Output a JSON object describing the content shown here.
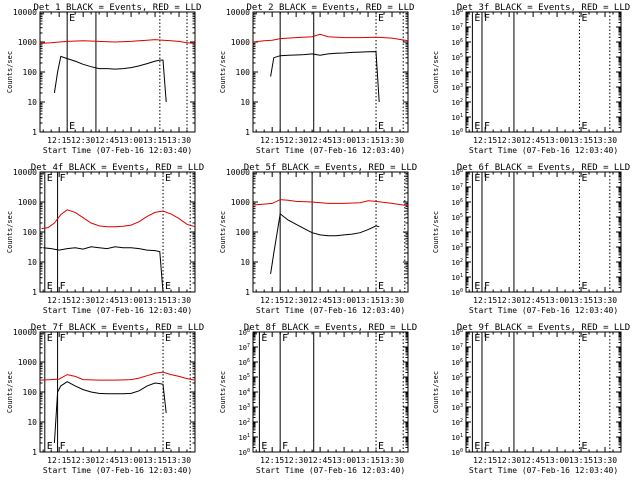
{
  "figure": {
    "xlabel": "Start Time (07-Feb-16 12:03:40)",
    "ylabel": "Counts/sec",
    "xticks": [
      "12:15",
      "12:30",
      "12:45",
      "13:00",
      "13:15",
      "13:30"
    ],
    "colors": {
      "events": "#000000",
      "lld": "#e00000",
      "frame": "#000000"
    }
  },
  "chart_data": [
    {
      "type": "line",
      "title": "Det 1 BLACK = Events, RED = LLD",
      "yscale": "log",
      "ylim": [
        1,
        10000
      ],
      "yticks": [
        "1",
        "10",
        "100",
        "1000",
        "10000"
      ],
      "xlim": [
        "12:03",
        "13:40"
      ],
      "markers": [
        {
          "x": "12:20",
          "style": "solid",
          "label": "E"
        },
        {
          "x": "12:38",
          "style": "solid",
          "label": ""
        },
        {
          "x": "13:18",
          "style": "dotted",
          "label": ""
        },
        {
          "x": "13:35",
          "style": "dotted",
          "label": ""
        }
      ],
      "series": [
        {
          "name": "Events",
          "color": "#000000",
          "x": [
            "12:12",
            "12:14",
            "12:16",
            "12:20",
            "12:25",
            "12:30",
            "12:35",
            "12:40",
            "12:45",
            "12:50",
            "12:55",
            "13:00",
            "13:05",
            "13:10",
            "13:15",
            "13:18",
            "13:20",
            "13:22"
          ],
          "y": [
            20,
            100,
            330,
            280,
            230,
            180,
            150,
            130,
            130,
            125,
            130,
            140,
            160,
            190,
            230,
            250,
            250,
            10
          ]
        },
        {
          "name": "LLD",
          "color": "#e00000",
          "x": [
            "12:03",
            "12:10",
            "12:15",
            "12:20",
            "12:30",
            "12:40",
            "12:50",
            "13:00",
            "13:05",
            "13:10",
            "13:15",
            "13:20",
            "13:25",
            "13:30",
            "13:35",
            "13:40"
          ],
          "y": [
            900,
            950,
            1000,
            1050,
            1100,
            1050,
            1000,
            1050,
            1100,
            1150,
            1200,
            1150,
            1100,
            1050,
            950,
            900
          ]
        }
      ]
    },
    {
      "type": "line",
      "title": "Det 2 BLACK = Events, RED = LLD",
      "yscale": "log",
      "ylim": [
        1,
        10000
      ],
      "yticks": [
        "1",
        "10",
        "100",
        "1000",
        "10000"
      ],
      "xlim": [
        "12:03",
        "13:40"
      ],
      "markers": [
        {
          "x": "12:20",
          "style": "solid",
          "label": ""
        },
        {
          "x": "12:41",
          "style": "solid",
          "label": ""
        },
        {
          "x": "13:20",
          "style": "dotted",
          "label": "E"
        },
        {
          "x": "13:37",
          "style": "dotted",
          "label": ""
        }
      ],
      "series": [
        {
          "name": "Events",
          "color": "#000000",
          "x": [
            "12:14",
            "12:16",
            "12:20",
            "12:25",
            "12:30",
            "12:35",
            "12:40",
            "12:45",
            "12:50",
            "12:55",
            "13:00",
            "13:05",
            "13:10",
            "13:15",
            "13:20",
            "13:22"
          ],
          "y": [
            70,
            300,
            350,
            360,
            370,
            380,
            400,
            360,
            400,
            420,
            430,
            450,
            460,
            470,
            480,
            10
          ]
        },
        {
          "name": "LLD",
          "color": "#e00000",
          "x": [
            "12:03",
            "12:10",
            "12:15",
            "12:20",
            "12:30",
            "12:40",
            "12:45",
            "12:50",
            "13:00",
            "13:10",
            "13:20",
            "13:30",
            "13:40"
          ],
          "y": [
            1000,
            1100,
            1150,
            1300,
            1400,
            1500,
            1800,
            1500,
            1400,
            1400,
            1450,
            1350,
            1100
          ]
        }
      ]
    },
    {
      "type": "line",
      "title": "Det 3f BLACK = Events, RED = LLD",
      "yscale": "log",
      "ylim": [
        1,
        100000000
      ],
      "yticks": [
        "10^0",
        "10^1",
        "10^2",
        "10^3",
        "10^4",
        "10^5",
        "10^6",
        "10^7",
        "10^8"
      ],
      "xlim": [
        "12:03",
        "13:40"
      ],
      "markers": [
        {
          "x": "12:07",
          "style": "solid",
          "label": "E"
        },
        {
          "x": "12:13",
          "style": "solid",
          "label": "F"
        },
        {
          "x": "12:33",
          "style": "solid",
          "label": ""
        },
        {
          "x": "13:14",
          "style": "dotted",
          "label": "E"
        },
        {
          "x": "13:33",
          "style": "dotted",
          "label": ""
        }
      ],
      "series": []
    },
    {
      "type": "line",
      "title": "Det 4f BLACK = Events, RED = LLD",
      "yscale": "log",
      "ylim": [
        1,
        10000
      ],
      "yticks": [
        "1",
        "10",
        "100",
        "1000",
        "10000"
      ],
      "xlim": [
        "12:03",
        "13:40"
      ],
      "markers": [
        {
          "x": "12:06",
          "style": "solid",
          "label": "E"
        },
        {
          "x": "12:14",
          "style": "solid",
          "label": "F"
        },
        {
          "x": "13:20",
          "style": "dotted",
          "label": "E"
        },
        {
          "x": "13:37",
          "style": "dotted",
          "label": ""
        }
      ],
      "series": [
        {
          "name": "Events",
          "color": "#000000",
          "x": [
            "12:05",
            "12:10",
            "12:15",
            "12:20",
            "12:25",
            "12:30",
            "12:35",
            "12:40",
            "12:45",
            "12:50",
            "12:55",
            "13:00",
            "13:05",
            "13:10",
            "13:15",
            "13:18",
            "13:20"
          ],
          "y": [
            30,
            28,
            25,
            28,
            30,
            27,
            32,
            30,
            28,
            32,
            30,
            30,
            28,
            25,
            24,
            22,
            1
          ]
        },
        {
          "name": "LLD",
          "color": "#e00000",
          "x": [
            "12:04",
            "12:08",
            "12:12",
            "12:16",
            "12:20",
            "12:25",
            "12:30",
            "12:35",
            "12:40",
            "12:45",
            "12:50",
            "12:55",
            "13:00",
            "13:05",
            "13:10",
            "13:15",
            "13:20",
            "13:25",
            "13:30",
            "13:35",
            "13:40"
          ],
          "y": [
            130,
            140,
            200,
            380,
            550,
            450,
            300,
            200,
            160,
            150,
            150,
            155,
            170,
            220,
            330,
            450,
            500,
            400,
            280,
            180,
            150
          ]
        }
      ]
    },
    {
      "type": "line",
      "title": "Det 5f BLACK = Events, RED = LLD",
      "yscale": "log",
      "ylim": [
        1,
        10000
      ],
      "yticks": [
        "1",
        "10",
        "100",
        "1000",
        "10000"
      ],
      "xlim": [
        "12:03",
        "13:40"
      ],
      "markers": [
        {
          "x": "12:20",
          "style": "solid",
          "label": ""
        },
        {
          "x": "12:40",
          "style": "solid",
          "label": ""
        },
        {
          "x": "13:20",
          "style": "dotted",
          "label": "E"
        },
        {
          "x": "13:38",
          "style": "dotted",
          "label": ""
        }
      ],
      "series": [
        {
          "name": "Events",
          "color": "#000000",
          "x": [
            "12:14",
            "12:16",
            "12:20",
            "12:25",
            "12:30",
            "12:35",
            "12:40",
            "12:45",
            "12:50",
            "12:55",
            "13:00",
            "13:05",
            "13:10",
            "13:15",
            "13:20",
            "13:22"
          ],
          "y": [
            4,
            20,
            400,
            250,
            180,
            130,
            95,
            80,
            75,
            75,
            80,
            85,
            95,
            120,
            160,
            150
          ]
        },
        {
          "name": "LLD",
          "color": "#e00000",
          "x": [
            "12:03",
            "12:10",
            "12:15",
            "12:20",
            "12:25",
            "12:30",
            "12:40",
            "12:50",
            "13:00",
            "13:10",
            "13:15",
            "13:20",
            "13:30",
            "13:40"
          ],
          "y": [
            800,
            850,
            900,
            1200,
            1150,
            1050,
            1000,
            900,
            900,
            950,
            1100,
            1050,
            900,
            750
          ]
        }
      ]
    },
    {
      "type": "line",
      "title": "Det 6f BLACK = Events, RED = LLD",
      "yscale": "log",
      "ylim": [
        1,
        100000000
      ],
      "yticks": [
        "10^0",
        "10^1",
        "10^2",
        "10^3",
        "10^4",
        "10^5",
        "10^6",
        "10^7",
        "10^8"
      ],
      "xlim": [
        "12:03",
        "13:40"
      ],
      "markers": [
        {
          "x": "12:07",
          "style": "solid",
          "label": "E"
        },
        {
          "x": "12:13",
          "style": "solid",
          "label": "F"
        },
        {
          "x": "12:33",
          "style": "solid",
          "label": ""
        },
        {
          "x": "13:14",
          "style": "dotted",
          "label": "E"
        },
        {
          "x": "13:33",
          "style": "dotted",
          "label": ""
        }
      ],
      "series": []
    },
    {
      "type": "line",
      "title": "Det 7f BLACK = Events, RED = LLD",
      "yscale": "log",
      "ylim": [
        1,
        10000
      ],
      "yticks": [
        "1",
        "10",
        "100",
        "1000",
        "10000"
      ],
      "xlim": [
        "12:03",
        "13:40"
      ],
      "markers": [
        {
          "x": "12:06",
          "style": "solid",
          "label": "E"
        },
        {
          "x": "12:14",
          "style": "solid",
          "label": "F"
        },
        {
          "x": "13:20",
          "style": "dotted",
          "label": "E"
        },
        {
          "x": "13:37",
          "style": "dotted",
          "label": ""
        }
      ],
      "series": [
        {
          "name": "Events",
          "color": "#000000",
          "x": [
            "12:12",
            "12:14",
            "12:16",
            "12:20",
            "12:25",
            "12:30",
            "12:35",
            "12:40",
            "12:45",
            "12:50",
            "12:55",
            "13:00",
            "13:05",
            "13:10",
            "13:15",
            "13:18",
            "13:20",
            "13:22"
          ],
          "y": [
            2,
            100,
            160,
            220,
            160,
            120,
            100,
            90,
            88,
            88,
            88,
            90,
            110,
            160,
            200,
            190,
            180,
            20
          ]
        },
        {
          "name": "LLD",
          "color": "#e00000",
          "x": [
            "12:03",
            "12:10",
            "12:15",
            "12:20",
            "12:25",
            "12:30",
            "12:40",
            "12:50",
            "13:00",
            "13:05",
            "13:10",
            "13:15",
            "13:20",
            "13:25",
            "13:30",
            "13:35",
            "13:40"
          ],
          "y": [
            250,
            260,
            270,
            380,
            330,
            260,
            250,
            250,
            260,
            290,
            350,
            420,
            460,
            380,
            330,
            280,
            250
          ]
        }
      ]
    },
    {
      "type": "line",
      "title": "Det 8f BLACK = Events, RED = LLD",
      "yscale": "log",
      "ylim": [
        1,
        100000000
      ],
      "yticks": [
        "10^0",
        "10^1",
        "10^2",
        "10^3",
        "10^4",
        "10^5",
        "10^6",
        "10^7",
        "10^8"
      ],
      "xlim": [
        "12:03",
        "13:40"
      ],
      "markers": [
        {
          "x": "12:07",
          "style": "solid",
          "label": "E"
        },
        {
          "x": "12:20",
          "style": "solid",
          "label": "F"
        },
        {
          "x": "12:41",
          "style": "solid",
          "label": ""
        },
        {
          "x": "13:20",
          "style": "dotted",
          "label": "E"
        },
        {
          "x": "13:37",
          "style": "dotted",
          "label": ""
        }
      ],
      "series": []
    },
    {
      "type": "line",
      "title": "Det 9f BLACK = Events, RED = LLD",
      "yscale": "log",
      "ylim": [
        1,
        100000000
      ],
      "yticks": [
        "10^0",
        "10^1",
        "10^2",
        "10^3",
        "10^4",
        "10^5",
        "10^6",
        "10^7",
        "10^8"
      ],
      "xlim": [
        "12:03",
        "13:40"
      ],
      "markers": [
        {
          "x": "12:07",
          "style": "solid",
          "label": "E"
        },
        {
          "x": "12:13",
          "style": "solid",
          "label": "F"
        },
        {
          "x": "12:33",
          "style": "solid",
          "label": ""
        },
        {
          "x": "13:14",
          "style": "dotted",
          "label": "E"
        },
        {
          "x": "13:33",
          "style": "dotted",
          "label": ""
        }
      ],
      "series": []
    }
  ]
}
